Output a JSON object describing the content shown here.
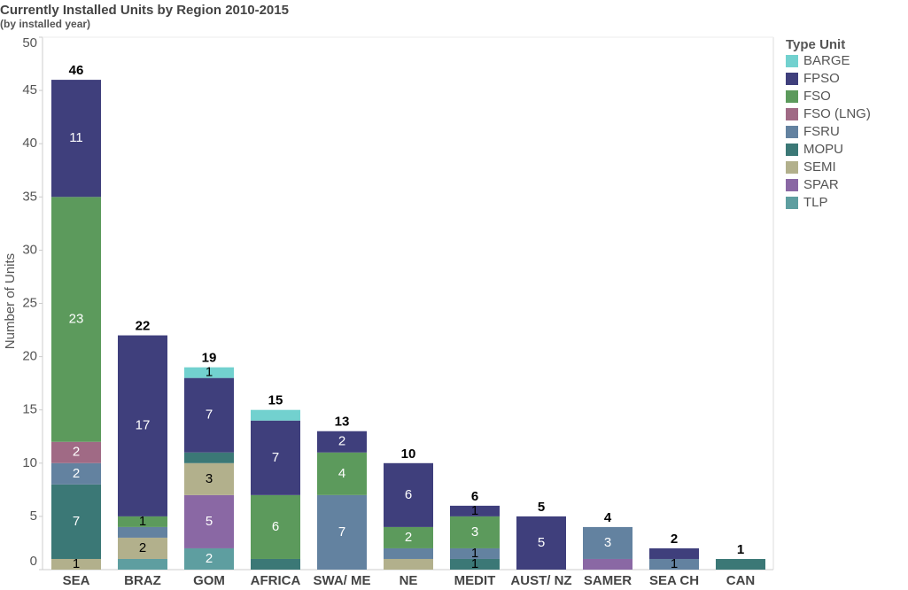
{
  "chart_data": {
    "type": "stacked_bar",
    "title": "Currently Installed Units by Region 2010-2015",
    "subtitle": "(by installed year)",
    "y_label": "Number of Units",
    "legend_title": "Type Unit",
    "categories": [
      "SEA",
      "BRAZ",
      "GOM",
      "AFRICA",
      "SWA/ ME",
      "NE",
      "MEDIT",
      "AUST/ NZ",
      "SAMER",
      "SEA CH",
      "CAN"
    ],
    "series": [
      {
        "name": "TLP",
        "color": "#5e9ea0",
        "values": [
          null,
          1,
          2,
          null,
          null,
          null,
          null,
          null,
          null,
          null,
          null
        ],
        "value_labels": [
          null,
          null,
          "2",
          null,
          null,
          null,
          null,
          null,
          null,
          null,
          null
        ]
      },
      {
        "name": "SPAR",
        "color": "#8a68a4",
        "values": [
          null,
          null,
          5,
          null,
          null,
          null,
          null,
          null,
          1,
          null,
          null
        ],
        "value_labels": [
          null,
          null,
          "5",
          null,
          null,
          null,
          null,
          null,
          null,
          null,
          null
        ]
      },
      {
        "name": "SEMI",
        "color": "#b2b08c",
        "values": [
          1,
          2,
          3,
          null,
          null,
          1,
          null,
          null,
          null,
          null,
          null
        ],
        "value_labels": [
          "1",
          "2",
          "3",
          null,
          null,
          null,
          null,
          null,
          null,
          null,
          null
        ]
      },
      {
        "name": "MOPU",
        "color": "#3b7876",
        "values": [
          7,
          null,
          1,
          1,
          null,
          null,
          1,
          null,
          null,
          null,
          1
        ],
        "value_labels": [
          "7",
          null,
          null,
          null,
          null,
          null,
          "1",
          null,
          null,
          null,
          null
        ]
      },
      {
        "name": "FSRU",
        "color": "#6382a0",
        "values": [
          2,
          1,
          null,
          null,
          7,
          1,
          1,
          null,
          3,
          1,
          null
        ],
        "value_labels": [
          "2",
          null,
          null,
          null,
          "7",
          null,
          "1",
          null,
          "3",
          "1",
          null
        ]
      },
      {
        "name": "FSO (LNG)",
        "color": "#a06a85",
        "values": [
          2,
          null,
          null,
          null,
          null,
          null,
          null,
          null,
          null,
          null,
          null
        ],
        "value_labels": [
          "2",
          null,
          null,
          null,
          null,
          null,
          null,
          null,
          null,
          null,
          null
        ]
      },
      {
        "name": "FSO",
        "color": "#5c9a5c",
        "values": [
          23,
          1,
          null,
          6,
          4,
          2,
          3,
          null,
          null,
          null,
          null
        ],
        "value_labels": [
          "23",
          "1",
          null,
          "6",
          "4",
          "2",
          "3",
          null,
          null,
          null,
          null
        ]
      },
      {
        "name": "FPSO",
        "color": "#3f3f7c",
        "values": [
          11,
          17,
          7,
          7,
          2,
          6,
          1,
          5,
          null,
          1,
          null
        ],
        "value_labels": [
          "11",
          "17",
          "7",
          "7",
          "2",
          "6",
          "1",
          "5",
          null,
          null,
          null
        ]
      },
      {
        "name": "BARGE",
        "color": "#72d1cf",
        "values": [
          null,
          null,
          1,
          1,
          null,
          null,
          null,
          null,
          null,
          null,
          null
        ],
        "value_labels": [
          null,
          null,
          "1",
          null,
          null,
          null,
          null,
          null,
          null,
          null,
          null
        ]
      }
    ],
    "totals": [
      46,
      22,
      19,
      15,
      13,
      10,
      6,
      5,
      4,
      2,
      1
    ],
    "ylim": [
      0,
      50
    ],
    "yticks": [
      0,
      5,
      10,
      15,
      20,
      25,
      30,
      35,
      40,
      45,
      50
    ],
    "grid": false
  }
}
